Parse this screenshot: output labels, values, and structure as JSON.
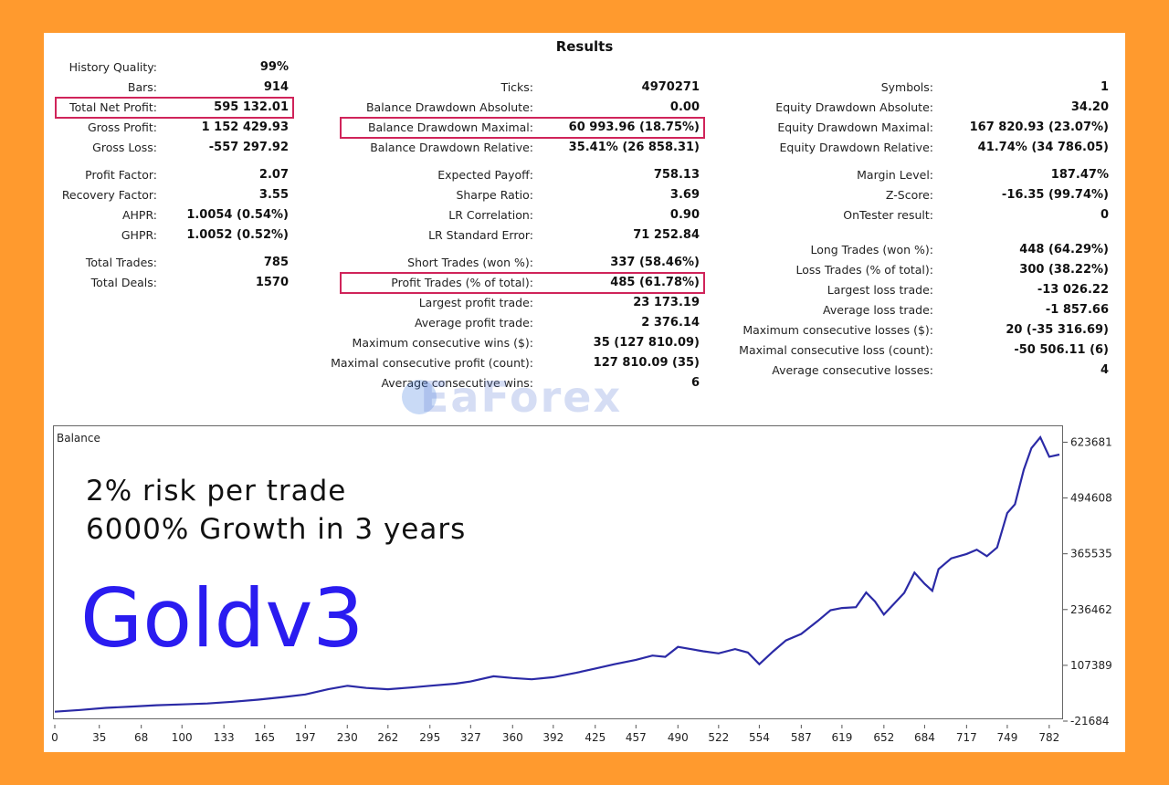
{
  "results": {
    "title": "Results",
    "columns": [
      {
        "rows": [
          {
            "label": "History Quality:",
            "value": "99%"
          },
          {
            "label": "Bars:",
            "value": "914"
          },
          {
            "label": "Total Net Profit:",
            "value": "595 132.01",
            "highlight": true
          },
          {
            "label": "Gross Profit:",
            "value": "1 152 429.93"
          },
          {
            "label": "Gross Loss:",
            "value": "-557 297.92"
          },
          {
            "label": "",
            "value": ""
          },
          {
            "label": "Profit Factor:",
            "value": "2.07"
          },
          {
            "label": "Recovery Factor:",
            "value": "3.55"
          },
          {
            "label": "AHPR:",
            "value": "1.0054 (0.54%)"
          },
          {
            "label": "GHPR:",
            "value": "1.0052 (0.52%)"
          },
          {
            "label": "",
            "value": ""
          },
          {
            "label": "Total Trades:",
            "value": "785"
          },
          {
            "label": "Total Deals:",
            "value": "1570"
          }
        ]
      },
      {
        "rows": [
          {
            "label": "",
            "value": ""
          },
          {
            "label": "Ticks:",
            "value": "4970271"
          },
          {
            "label": "Balance Drawdown Absolute:",
            "value": "0.00"
          },
          {
            "label": "Balance Drawdown Maximal:",
            "value": "60 993.96 (18.75%)",
            "highlight": true
          },
          {
            "label": "Balance Drawdown Relative:",
            "value": "35.41% (26 858.31)"
          },
          {
            "label": "",
            "value": ""
          },
          {
            "label": "Expected Payoff:",
            "value": "758.13"
          },
          {
            "label": "Sharpe Ratio:",
            "value": "3.69"
          },
          {
            "label": "LR Correlation:",
            "value": "0.90"
          },
          {
            "label": "LR Standard Error:",
            "value": "71 252.84"
          },
          {
            "label": "",
            "value": ""
          },
          {
            "label": "Short Trades (won %):",
            "value": "337 (58.46%)"
          },
          {
            "label": "Profit Trades (% of total):",
            "value": "485 (61.78%)",
            "highlight": true
          },
          {
            "label": "Largest profit trade:",
            "value": "23 173.19"
          },
          {
            "label": "Average profit trade:",
            "value": "2 376.14"
          },
          {
            "label": "Maximum consecutive wins ($):",
            "value": "35 (127 810.09)"
          },
          {
            "label": "Maximal consecutive profit (count):",
            "value": "127 810.09 (35)"
          },
          {
            "label": "Average consecutive wins:",
            "value": "6"
          }
        ]
      },
      {
        "rows": [
          {
            "label": "",
            "value": ""
          },
          {
            "label": "Symbols:",
            "value": "1"
          },
          {
            "label": "Equity Drawdown Absolute:",
            "value": "34.20"
          },
          {
            "label": "Equity Drawdown Maximal:",
            "value": "167 820.93 (23.07%)"
          },
          {
            "label": "Equity Drawdown Relative:",
            "value": "41.74% (34 786.05)"
          },
          {
            "label": "",
            "value": ""
          },
          {
            "label": "Margin Level:",
            "value": "187.47%"
          },
          {
            "label": "Z-Score:",
            "value": "-16.35 (99.74%)"
          },
          {
            "label": "OnTester result:",
            "value": "0"
          },
          {
            "label": "",
            "value": ""
          },
          {
            "label": "",
            "value": ""
          },
          {
            "label": "Long Trades (won %):",
            "value": "448 (64.29%)"
          },
          {
            "label": "Loss Trades (% of total):",
            "value": "300 (38.22%)"
          },
          {
            "label": "Largest loss trade:",
            "value": "-13 026.22"
          },
          {
            "label": "Average loss trade:",
            "value": "-1 857.66"
          },
          {
            "label": "Maximum consecutive losses ($):",
            "value": "20 (-35 316.69)"
          },
          {
            "label": "Maximal consecutive loss (count):",
            "value": "-50 506.11 (6)"
          },
          {
            "label": "Average consecutive losses:",
            "value": "4"
          }
        ]
      }
    ]
  },
  "watermark": "EaForex",
  "overlay": {
    "line1": "2% risk per trade",
    "line2": "6000% Growth in 3 years",
    "name": "Goldv3"
  },
  "colors": {
    "background": "#ff9a2e",
    "line": "#2b2aa6",
    "highlight": "#d0245a",
    "name_text": "#2a1cf0"
  },
  "chart_data": {
    "type": "line",
    "title": "Balance",
    "xlabel": "",
    "ylabel": "",
    "x_ticks": [
      0,
      35,
      68,
      100,
      133,
      165,
      197,
      230,
      262,
      295,
      327,
      360,
      392,
      425,
      457,
      490,
      522,
      554,
      587,
      619,
      652,
      684,
      717,
      749,
      782
    ],
    "y_ticks": [
      -21684,
      107389,
      236462,
      365535,
      494608,
      623681
    ],
    "xlim": [
      0,
      790
    ],
    "ylim": [
      -21684,
      650000
    ],
    "grid": false,
    "series": [
      {
        "values": [
          [
            0,
            0
          ],
          [
            20,
            4000
          ],
          [
            40,
            9000
          ],
          [
            60,
            12000
          ],
          [
            80,
            15000
          ],
          [
            100,
            17000
          ],
          [
            120,
            19000
          ],
          [
            140,
            23000
          ],
          [
            160,
            28000
          ],
          [
            180,
            34000
          ],
          [
            197,
            40000
          ],
          [
            215,
            52000
          ],
          [
            230,
            60000
          ],
          [
            245,
            55000
          ],
          [
            262,
            52000
          ],
          [
            280,
            56000
          ],
          [
            295,
            60000
          ],
          [
            315,
            65000
          ],
          [
            327,
            70000
          ],
          [
            345,
            82000
          ],
          [
            360,
            78000
          ],
          [
            375,
            75000
          ],
          [
            392,
            80000
          ],
          [
            410,
            90000
          ],
          [
            425,
            100000
          ],
          [
            440,
            110000
          ],
          [
            457,
            120000
          ],
          [
            470,
            130000
          ],
          [
            480,
            127000
          ],
          [
            490,
            150000
          ],
          [
            500,
            145000
          ],
          [
            510,
            140000
          ],
          [
            522,
            135000
          ],
          [
            535,
            145000
          ],
          [
            545,
            137000
          ],
          [
            554,
            110000
          ],
          [
            565,
            140000
          ],
          [
            575,
            165000
          ],
          [
            587,
            180000
          ],
          [
            600,
            210000
          ],
          [
            610,
            235000
          ],
          [
            619,
            240000
          ],
          [
            630,
            242000
          ],
          [
            638,
            276000
          ],
          [
            645,
            255000
          ],
          [
            652,
            225000
          ],
          [
            660,
            250000
          ],
          [
            668,
            275000
          ],
          [
            676,
            322000
          ],
          [
            684,
            296000
          ],
          [
            690,
            280000
          ],
          [
            695,
            330000
          ],
          [
            705,
            355000
          ],
          [
            717,
            365000
          ],
          [
            725,
            375000
          ],
          [
            733,
            360000
          ],
          [
            741,
            380000
          ],
          [
            749,
            460000
          ],
          [
            755,
            480000
          ],
          [
            762,
            560000
          ],
          [
            768,
            610000
          ],
          [
            775,
            635000
          ],
          [
            782,
            590000
          ],
          [
            790,
            595000
          ]
        ]
      }
    ]
  }
}
